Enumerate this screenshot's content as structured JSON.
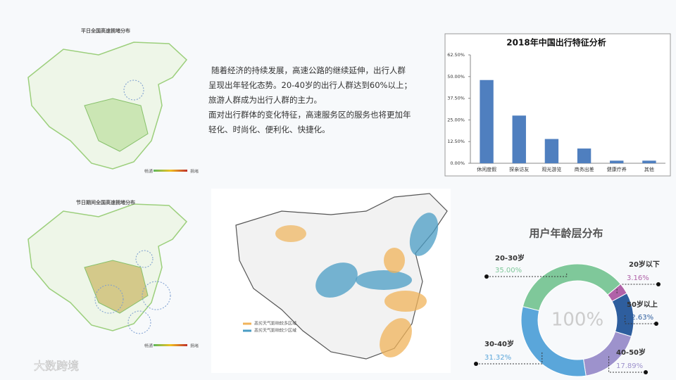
{
  "maps": [
    {
      "title": "平日全国高速拥堵分布",
      "legend": [
        "畅通",
        "拥堵"
      ]
    },
    {
      "title": "节日期间全国高速拥堵分布",
      "legend": [
        "畅通",
        "拥堵"
      ]
    },
    {
      "legend": [
        "恶劣天气影响较多区域",
        "恶劣天气影响较少区域"
      ]
    }
  ],
  "text_block": [
    "随着经济的持续发展，高速公路的继续延伸，出行人群呈现出年轻化态势。20-40岁的出行人群达到60%以上；旅游人群成为出行人群的主力。",
    "面对出行群体的变化特征，高速服务区的服务也将更加年轻化、时尚化、便利化、快捷化。"
  ],
  "watermark": "大数跨境",
  "chart_data": [
    {
      "type": "bar",
      "title": "2018年中国出行特征分析",
      "categories": [
        "休闲度假",
        "探亲访友",
        "观光游览",
        "商务出差",
        "健康疗养",
        "其他"
      ],
      "values": [
        48,
        27.5,
        14,
        8.5,
        1.5,
        1.5
      ],
      "color": "#4f7fbf",
      "ylim": [
        0,
        62.5
      ],
      "yticks": [
        {
          "value": 0,
          "label": "0.00%"
        },
        {
          "value": 12.5,
          "label": "12.50%"
        },
        {
          "value": 25,
          "label": "25.00%"
        },
        {
          "value": 37.5,
          "label": "37.50%"
        },
        {
          "value": 50,
          "label": "50.00%"
        },
        {
          "value": 62.5,
          "label": "62.50%"
        }
      ]
    },
    {
      "type": "donut",
      "title": "用户年龄层分布",
      "center_label": "100%",
      "categories": [
        "20岁以下",
        "50岁以上",
        "40-50岁",
        "30-40岁",
        "20-30岁"
      ],
      "values": [
        3.16,
        12.63,
        17.89,
        31.32,
        35.0
      ],
      "value_labels": [
        "3.16%",
        "12.63%",
        "17.89%",
        "31.32%",
        "35.00%"
      ],
      "colors": [
        "#b062a8",
        "#2e5e9e",
        "#9d92cc",
        "#5aa6da",
        "#7fc89a"
      ]
    }
  ]
}
